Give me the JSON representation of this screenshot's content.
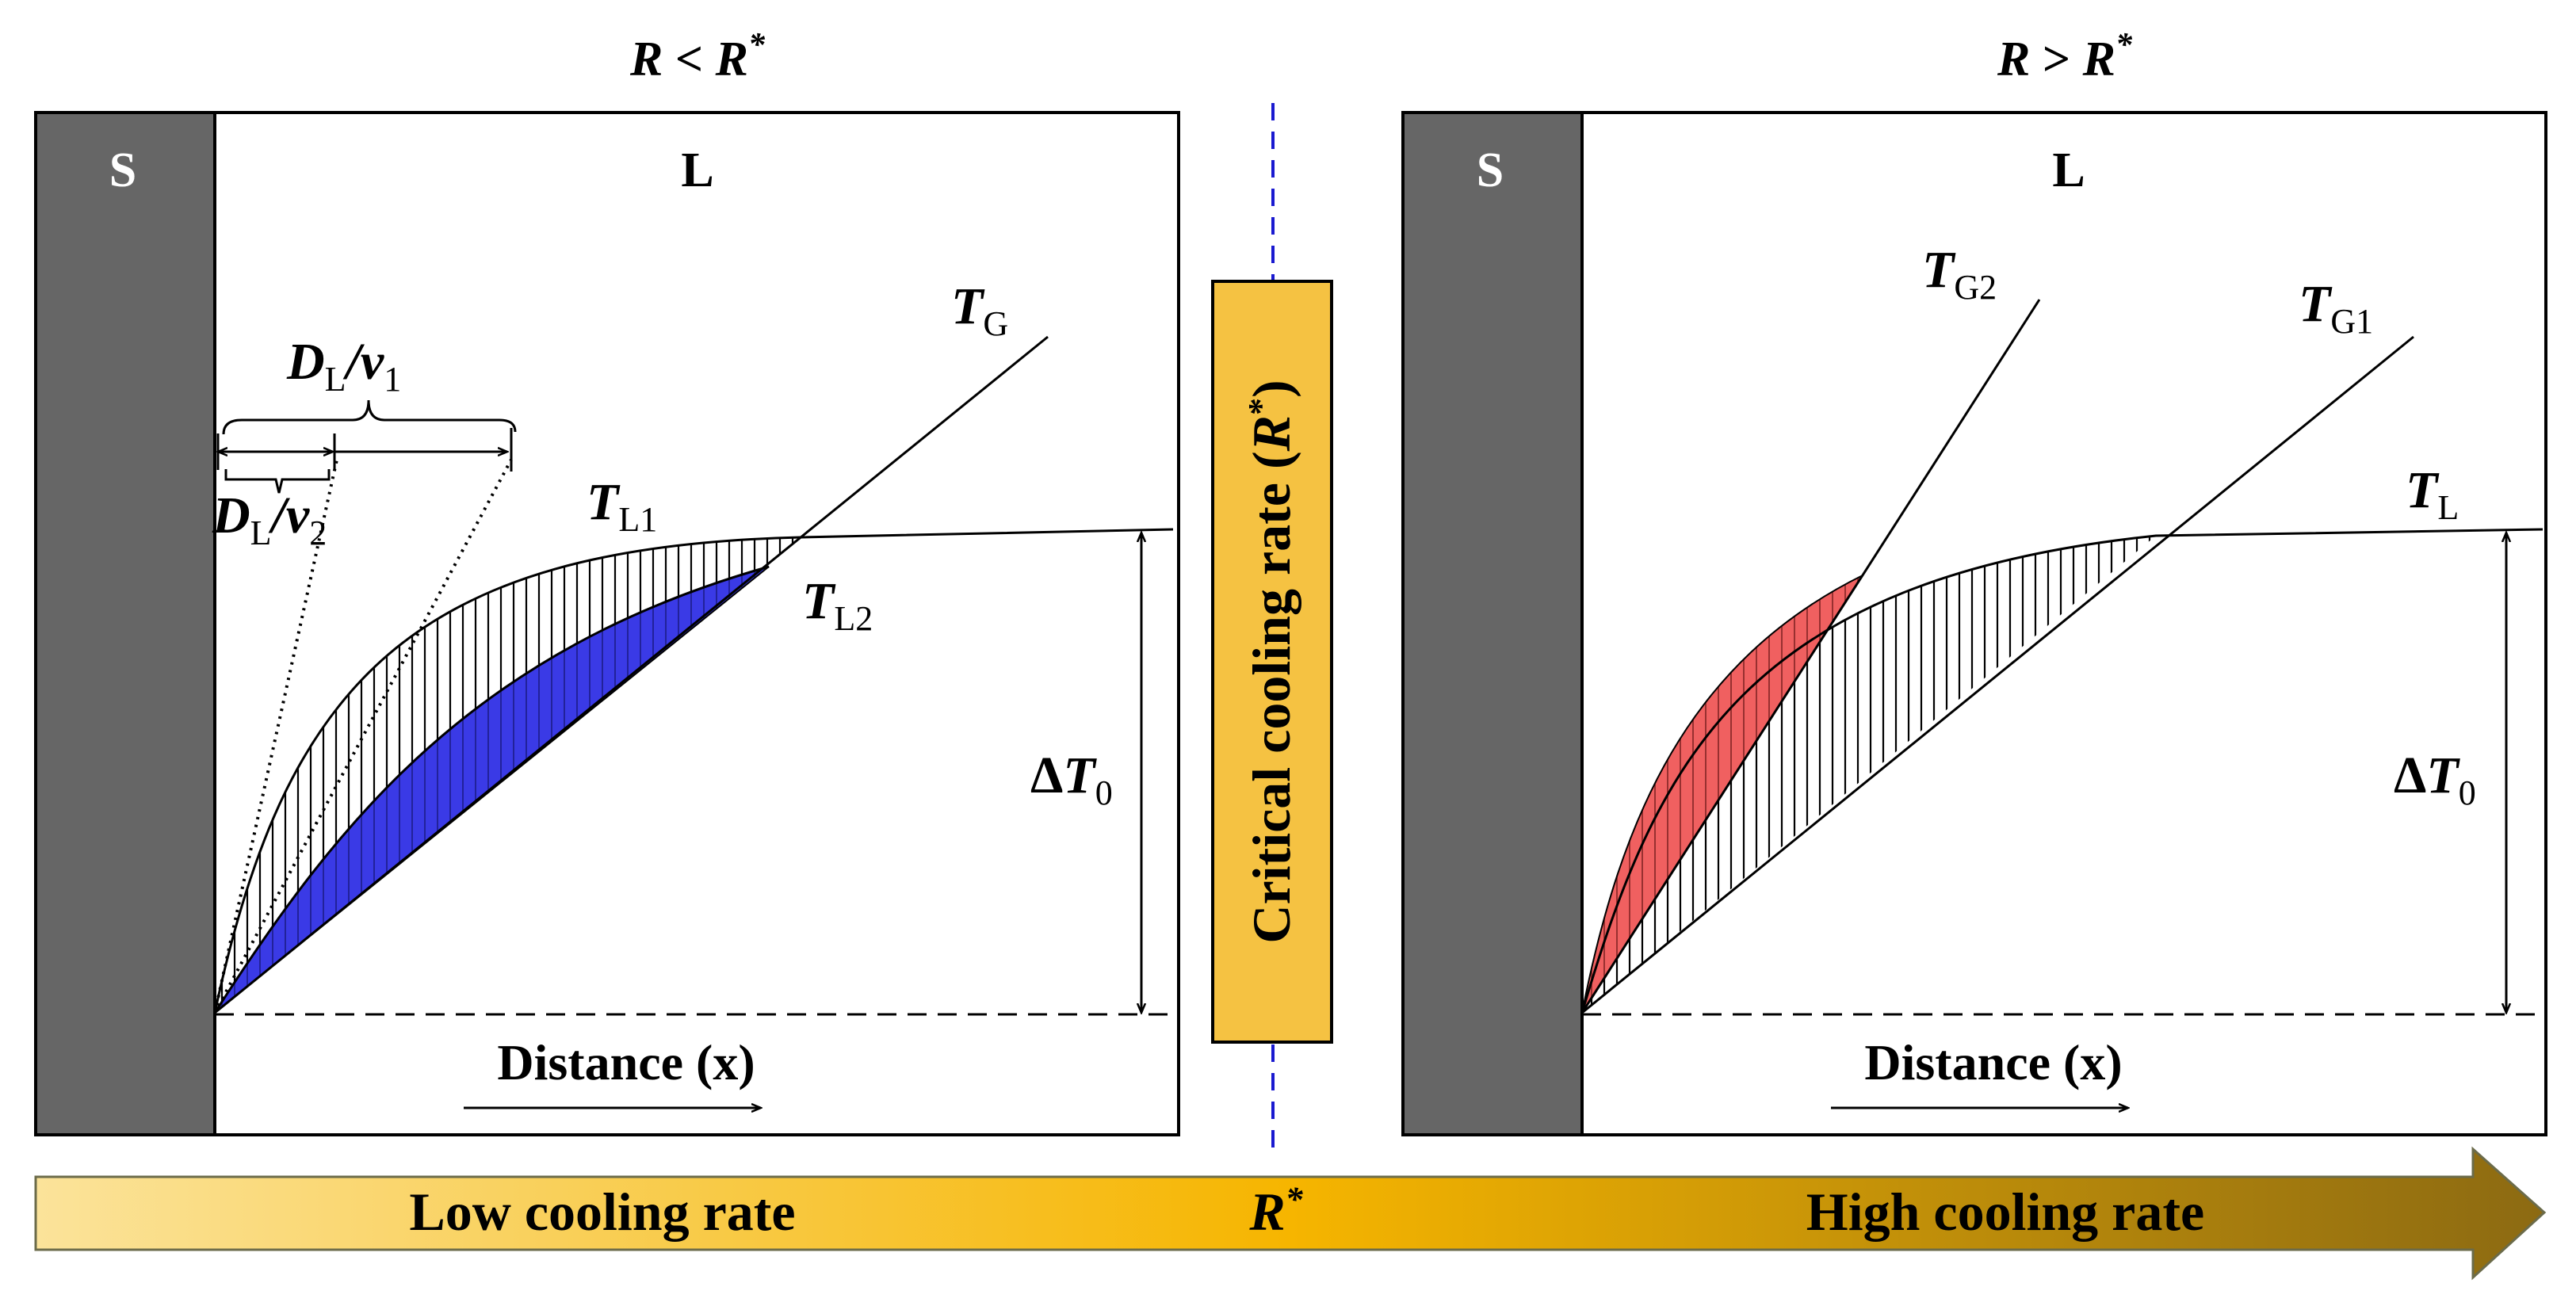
{
  "left_panel": {
    "condition_italic": "R",
    "condition_op": "<",
    "condition_ref": "R",
    "condition_sup": "*",
    "solid_label": "S",
    "liquid_label": "L",
    "gradient_label": "T",
    "gradient_sub": "G",
    "liquidus1_label": "T",
    "liquidus1_sub": "L1",
    "liquidus2_label": "T",
    "liquidus2_sub": "L2",
    "diff_len1_D": "D",
    "diff_len1_Dsub": "L",
    "diff_len1_v": "/v",
    "diff_len1_vsub": "1",
    "diff_len2_D": "D",
    "diff_len2_Dsub": "L",
    "diff_len2_v": "/v",
    "diff_len2_vsub": "2",
    "undercooling_delta": "Δ",
    "undercooling_T": "T",
    "undercooling_sub": "0",
    "axis_label": "Distance (x)",
    "fill_color": "#3a3ae6"
  },
  "right_panel": {
    "condition_italic": "R",
    "condition_op": ">",
    "condition_ref": "R",
    "condition_sup": "*",
    "solid_label": "S",
    "liquid_label": "L",
    "gradient2_label": "T",
    "gradient2_sub": "G2",
    "gradient1_label": "T",
    "gradient1_sub": "G1",
    "liquidus_label": "T",
    "liquidus_sub": "L",
    "undercooling_delta": "Δ",
    "undercooling_T": "T",
    "undercooling_sub": "0",
    "axis_label": "Distance (x)",
    "fill_color": "#f06060"
  },
  "center": {
    "critical_text": "Critical cooling rate (",
    "critical_italic": "R",
    "critical_sup": "*",
    "critical_close": ")",
    "box_color": "#f5c242"
  },
  "arrow_bar": {
    "low_label": "Low cooling rate",
    "mid_label": "R",
    "mid_sup": "*",
    "high_label": "High cooling rate"
  }
}
